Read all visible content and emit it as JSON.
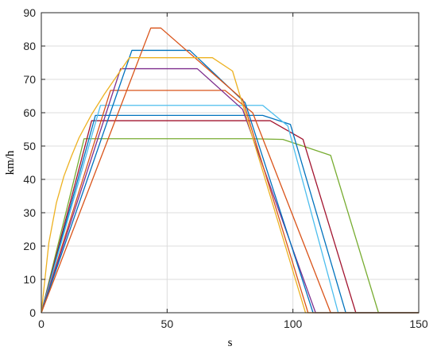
{
  "chart_data": {
    "type": "line",
    "title": "",
    "xlabel": "s",
    "ylabel": "km/h",
    "xlim": [
      0,
      150
    ],
    "ylim": [
      0,
      90
    ],
    "xticks": [
      0,
      50,
      100,
      150
    ],
    "yticks": [
      0,
      10,
      20,
      30,
      40,
      50,
      60,
      70,
      80,
      90
    ],
    "grid": true,
    "colors": {
      "orange_red": "#D95319",
      "blue": "#0072BD",
      "yellow": "#EDB120",
      "purple": "#7E2F8E",
      "green": "#77AC30",
      "cyan": "#4DBEEE",
      "dark_red": "#A2142F"
    },
    "series": [
      {
        "color": "#77AC30",
        "x": [
          0,
          17,
          83,
          96,
          115,
          134,
          150
        ],
        "y": [
          0,
          52.2,
          52.2,
          52,
          47.2,
          0,
          0
        ]
      },
      {
        "color": "#A2142F",
        "x": [
          0,
          20,
          91,
          104,
          125,
          150
        ],
        "y": [
          0,
          57.6,
          57.6,
          52,
          0,
          0
        ]
      },
      {
        "color": "#0072BD",
        "x": [
          0,
          21.5,
          88,
          99,
          121,
          150
        ],
        "y": [
          0,
          59.2,
          59.2,
          56.5,
          0,
          0
        ]
      },
      {
        "color": "#4DBEEE",
        "x": [
          0,
          23.5,
          88,
          98,
          118,
          150
        ],
        "y": [
          0,
          62.2,
          62.2,
          56,
          0,
          0
        ]
      },
      {
        "color": "#D95319",
        "x": [
          0,
          27.5,
          73,
          84,
          115,
          150
        ],
        "y": [
          0,
          66.7,
          66.7,
          60,
          0,
          0
        ]
      },
      {
        "color": "#7E2F8E",
        "x": [
          0,
          31.5,
          62,
          80,
          109,
          150
        ],
        "y": [
          0,
          73.2,
          73.2,
          61,
          0,
          0
        ]
      },
      {
        "color": "#0072BD",
        "x": [
          0,
          36,
          59,
          81,
          108,
          150
        ],
        "y": [
          0,
          78.7,
          78.7,
          63,
          0,
          0
        ]
      },
      {
        "color": "#D95319",
        "x": [
          0,
          43.5,
          47.5,
          80,
          106,
          150
        ],
        "y": [
          0,
          85.4,
          85.4,
          64,
          0,
          0
        ]
      },
      {
        "color": "#EDB120",
        "x": [
          0,
          3,
          6,
          9,
          12,
          15,
          20,
          25,
          30,
          35,
          68,
          76,
          105,
          150
        ],
        "y": [
          0,
          21,
          33,
          41,
          47,
          52.5,
          59.5,
          65.5,
          71,
          76.5,
          76.5,
          72.5,
          0,
          0
        ]
      }
    ]
  }
}
